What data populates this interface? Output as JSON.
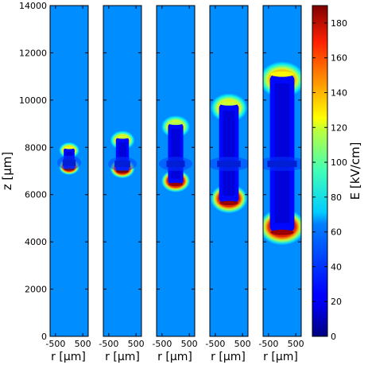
{
  "chart_data": {
    "type": "heatmap",
    "layout": "5 side-by-side panels sharing y-axis and colorbar",
    "ylabel": "z [μm]",
    "xlabel": "r [μm]",
    "ylim": [
      0,
      14000
    ],
    "yticks": [
      0,
      2000,
      4000,
      6000,
      8000,
      10000,
      12000,
      14000
    ],
    "xlim": [
      -700,
      700
    ],
    "xtick_labels": [
      "-500",
      "500"
    ],
    "colorbar": {
      "label": "E [kV/cm]",
      "colormap": "jet",
      "range": [
        0,
        190
      ],
      "ticks": [
        0,
        20,
        40,
        60,
        80,
        100,
        120,
        140,
        160,
        180
      ]
    },
    "background_field_kV_cm": 50,
    "panels": [
      {
        "head_top_z": 8000,
        "tail_bottom_z": 7050,
        "center_z": 7350,
        "half_width_um": 200,
        "head_peak": 135,
        "tail_peak": 190
      },
      {
        "head_top_z": 8450,
        "tail_bottom_z": 6950,
        "center_z": 7300,
        "half_width_um": 240,
        "head_peak": 130,
        "tail_peak": 190
      },
      {
        "head_top_z": 9050,
        "tail_bottom_z": 6400,
        "center_z": 7300,
        "half_width_um": 280,
        "head_peak": 125,
        "tail_peak": 185
      },
      {
        "head_top_z": 9900,
        "tail_bottom_z": 5600,
        "center_z": 7300,
        "half_width_um": 360,
        "head_peak": 130,
        "tail_peak": 185
      },
      {
        "head_top_z": 11150,
        "tail_bottom_z": 4350,
        "center_z": 7300,
        "half_width_um": 450,
        "head_peak": 140,
        "tail_peak": 185
      }
    ]
  }
}
